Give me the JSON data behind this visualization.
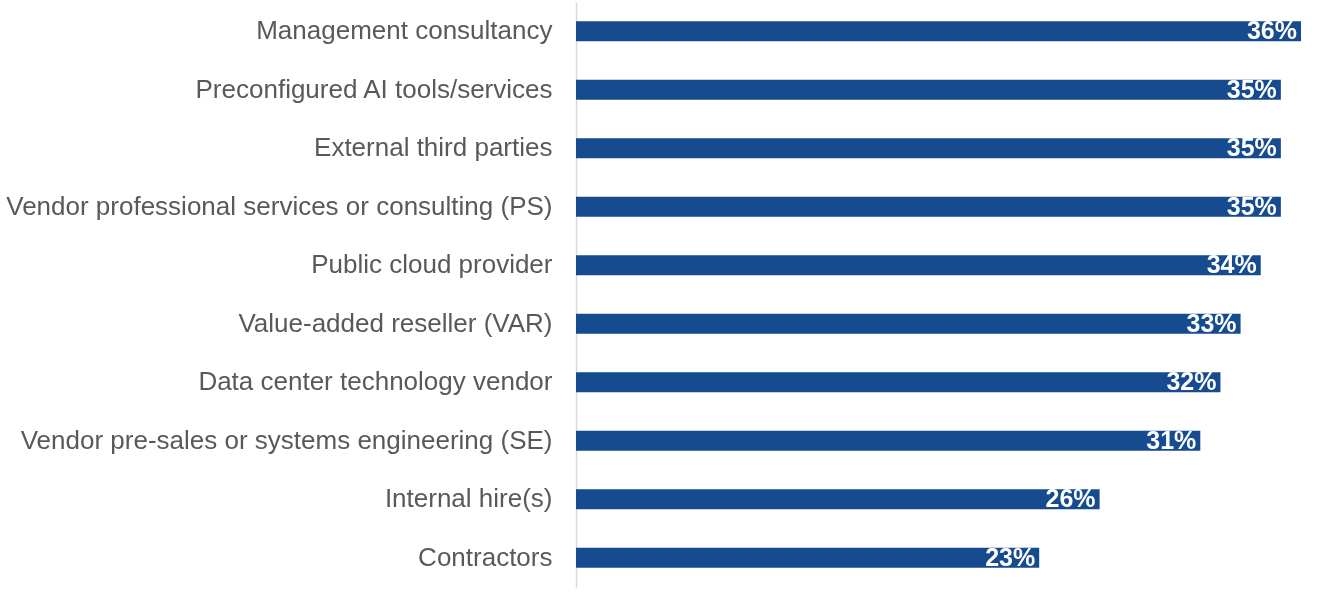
{
  "chart_data": {
    "type": "bar",
    "orientation": "horizontal",
    "categories": [
      "Management consultancy",
      "Preconfigured AI tools/services",
      "External third parties",
      "Vendor professional services or consulting (PS)",
      "Public cloud provider",
      "Value-added reseller (VAR)",
      "Data center technology vendor",
      "Vendor pre-sales or systems engineering (SE)",
      "Internal hire(s)",
      "Contractors"
    ],
    "values": [
      36,
      35,
      35,
      35,
      34,
      33,
      32,
      31,
      26,
      23
    ],
    "value_labels": [
      "36%",
      "35%",
      "35%",
      "35%",
      "34%",
      "33%",
      "32%",
      "31%",
      "26%",
      "23%"
    ],
    "color": "#174b8f",
    "grid": false
  }
}
